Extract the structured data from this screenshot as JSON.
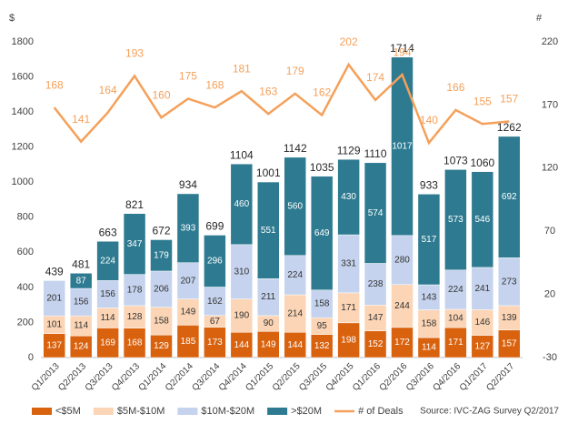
{
  "chart_data": {
    "type": "bar",
    "y_label": "$",
    "y2_label": "#",
    "source": "Source: IVC-ZAG Survey Q2/2017",
    "categories": [
      "Q1/2013",
      "Q2/2013",
      "Q3/2013",
      "Q4/2013",
      "Q1/2014",
      "Q2/2014",
      "Q3/2014",
      "Q4/2014",
      "Q1/2015",
      "Q2/2015",
      "Q3/2015",
      "Q4/2015",
      "Q1/2016",
      "Q2/2016",
      "Q3/2016",
      "Q4/2016",
      "Q1/2017",
      "Q2/2017"
    ],
    "series": [
      {
        "name": "<$5M",
        "color": "#d9620f",
        "label_color": "#ffffff",
        "values": [
          137,
          124,
          169,
          168,
          129,
          185,
          173,
          144,
          149,
          144,
          132,
          198,
          152,
          172,
          114,
          171,
          127,
          157
        ]
      },
      {
        "name": "$5M-$10M",
        "color": "#fbd5b5",
        "label_color": "#333333",
        "values": [
          101,
          114,
          114,
          128,
          158,
          149,
          67,
          190,
          90,
          214,
          95,
          171,
          147,
          244,
          158,
          104,
          146,
          139
        ]
      },
      {
        "name": "$10M-$20M",
        "color": "#c5d3ee",
        "label_color": "#333333",
        "values": [
          201,
          156,
          156,
          178,
          206,
          207,
          162,
          310,
          211,
          224,
          158,
          331,
          238,
          280,
          143,
          224,
          241,
          273
        ]
      },
      {
        "name": ">$20M",
        "color": "#2e7b91",
        "label_color": "#ffffff",
        "values": [
          null,
          87,
          224,
          347,
          179,
          393,
          296,
          460,
          551,
          560,
          649,
          430,
          574,
          1017,
          517,
          573,
          546,
          692
        ]
      },
      {
        "name": "# of Deals",
        "type": "line",
        "axis": "y2",
        "color": "#f5a05a",
        "values": [
          168,
          141,
          164,
          193,
          160,
          175,
          168,
          181,
          163,
          179,
          162,
          202,
          174,
          194,
          140,
          166,
          155,
          157
        ]
      }
    ],
    "totals": [
      439,
      481,
      663,
      821,
      672,
      934,
      699,
      1104,
      1001,
      1142,
      1035,
      1129,
      1110,
      1714,
      933,
      1073,
      1060,
      1262
    ],
    "ylim": [
      0,
      1800
    ],
    "yticks": [
      0,
      200,
      400,
      600,
      800,
      1000,
      1200,
      1400,
      1600,
      1800
    ],
    "y2lim": [
      -30,
      220
    ],
    "y2ticks": [
      -30,
      20,
      70,
      120,
      170,
      220
    ]
  }
}
